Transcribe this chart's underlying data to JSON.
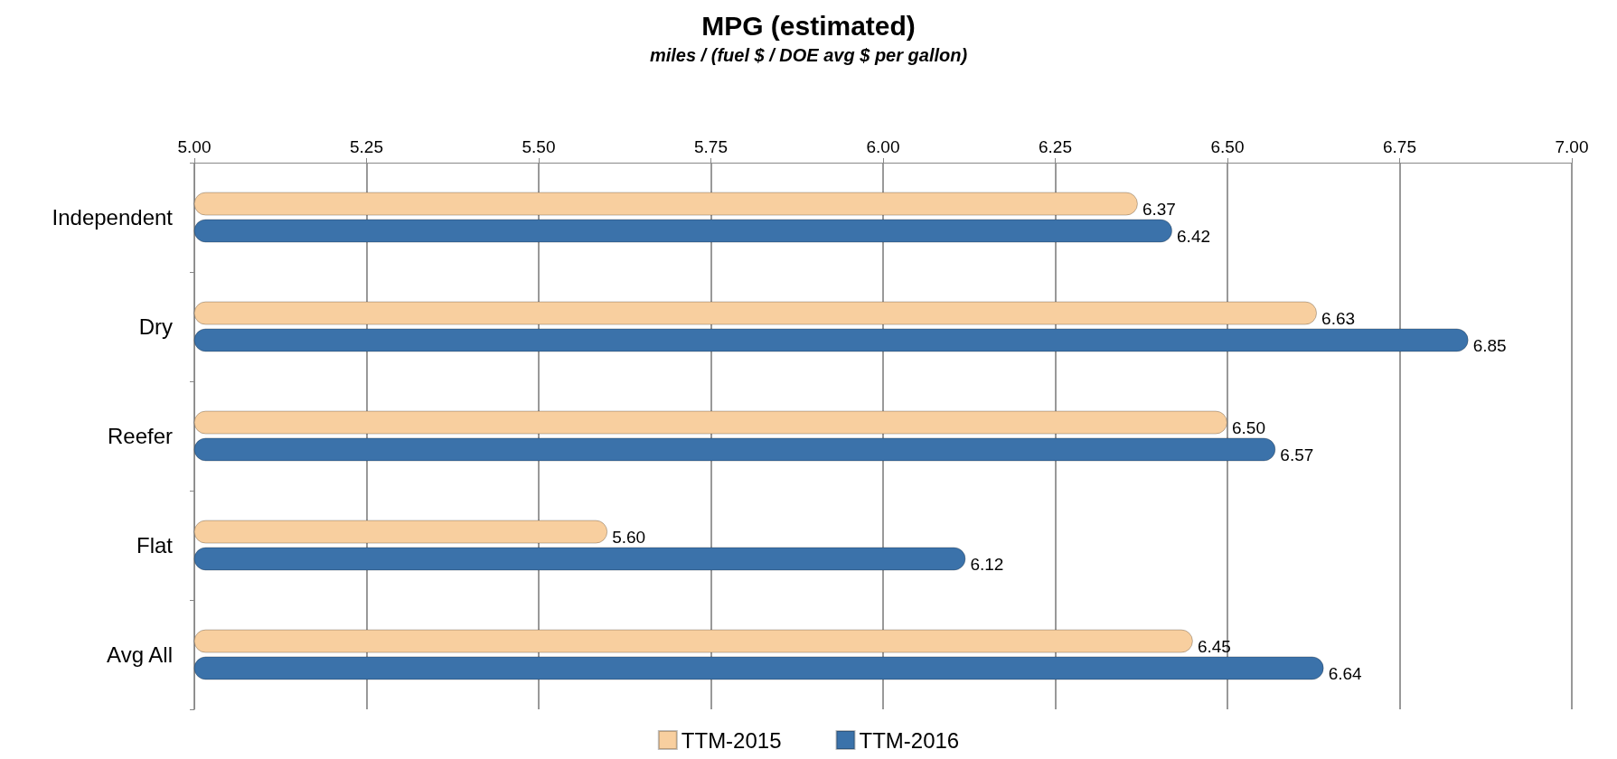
{
  "chart_data": {
    "type": "bar",
    "orientation": "horizontal",
    "title": "MPG (estimated)",
    "subtitle": "miles / (fuel $ / DOE avg $ per gallon)",
    "categories": [
      "Independent",
      "Dry",
      "Reefer",
      "Flat",
      "Avg All"
    ],
    "series": [
      {
        "name": "TTM-2015",
        "color": "#f8cf9f",
        "values": [
          6.37,
          6.63,
          6.5,
          5.6,
          6.45
        ],
        "value_labels": [
          "6.37",
          "6.63",
          "6.50",
          "5.60",
          "6.45"
        ]
      },
      {
        "name": "TTM-2016",
        "color": "#3b72aa",
        "values": [
          6.42,
          6.85,
          6.57,
          6.12,
          6.64
        ],
        "value_labels": [
          "6.42",
          "6.85",
          "6.57",
          "6.12",
          "6.64"
        ]
      }
    ],
    "xlim": [
      5,
      7
    ],
    "xticks": [
      {
        "value": 5,
        "label": "5.00"
      },
      {
        "value": 5.25,
        "label": "5.25"
      },
      {
        "value": 5.5,
        "label": "5.50"
      },
      {
        "value": 5.75,
        "label": "5.75"
      },
      {
        "value": 6,
        "label": "6.00"
      },
      {
        "value": 6.25,
        "label": "6.25"
      },
      {
        "value": 6.5,
        "label": "6.50"
      },
      {
        "value": 6.75,
        "label": "6.75"
      },
      {
        "value": 7,
        "label": "7.00"
      }
    ],
    "grid": "x",
    "legend": "bottom"
  }
}
